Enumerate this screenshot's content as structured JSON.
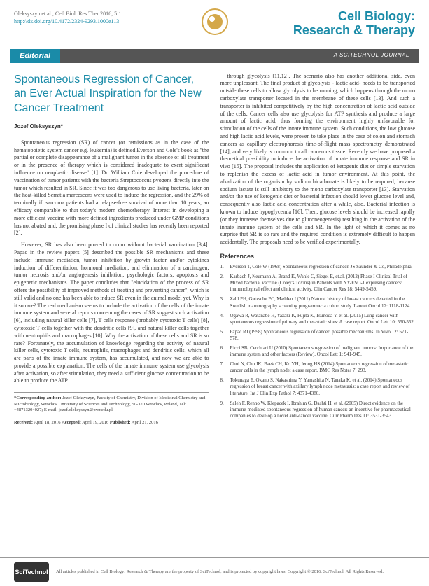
{
  "header": {
    "citation": "Oleksyszyn et al., Cell Biol: Res Ther 2016, 5:1",
    "doi": "http://dx.doi.org/10.4172/2324-9293.1000e113",
    "journal_l1": "Cell Biology:",
    "journal_l2": "Research & Therapy"
  },
  "bar": {
    "left": "Editorial",
    "right": "A SCITECHNOL JOURNAL"
  },
  "article": {
    "title": "Spontaneous Regression of Cancer, an Ever Actual Inspiration for the New Cancer Treatment",
    "author": "Jozef Oleksyszyn*"
  },
  "body": {
    "p1": "Spontaneous regression (SR) of cancer (or remissions as in the case of the hematopoietic system cancer e.g. leukemia) is defined Everson and Cole's book as \"the partial or complete disappearance of a malignant tumor in the absence of all treatment or in the presence of therapy which is considered inadequate to exert significant influence on neoplastic disease\" [1]. Dr. William Cole developed the procedure of vaccination of tumor patients with the bacteria Streptococcus pyogens directly into the tumor which resulted in SR. Since it was too dangerous to use living bacteria, later on the heat-killed Serratia marcescens were used to induce the regression, and the 29% of terminally ill sarcoma patients had a relapse-free survival of more than 10 years, an efficacy comparable to that today's modern chemotherapy. Interest in developing a more efficient vaccine with more defined ingredients produced under GMP conditions has not abated and, the promising phase I of clinical studies has recently been reported [2].",
    "p2": "However, SR has also been proved to occur without bacterial vaccination [3,4]. Papac in the review papers [5] described the possible SR mechanisms and these include: immune mediation, tumor inhibition by growth factor and/or cytokines induction of differentiation, hormonal mediation, and elimination of a carcinogen, tumor necrosis and/or angiogenesis inhibition, psychologic factors, apoptosis and epigenetic mechanisms. The paper concludes that \"elucidation of the process of SR offers the possibility of improved methods of treating and preventing cancer\", which is still valid and no one has been able to induce SR even in the animal model yet. Why is it so rare? The real mechanism seems to include the activation of the cells of the innate immune system and several reports concerning the cases of SR suggest such activation [6], including natural killer cells [7], T cells response (probably cytotoxic T cells) [8], cytotoxic T cells together with the dendritic cells [9], and natural killer cells together with neutrophils and macrophages [10]. Why the activation of these cells and SR is so rare? Fortunately, the accumulation of knowledge regarding the activity of natural killer cells, cytotoxic T cells, neutrophils, macrophages and dendritic cells, which all are parts of the innate immune system, has accumulated, and now we are able to provide a possible explanation. The cells of the innate immune system use glycolysis after activation, so after stimulation, they need a sufficient glucose concentration to be able to produce the ATP",
    "p3": "through glycolysis [11,12]. The scenario also has another additional side, even more unpleasant. The final product of glycolysis - lactic acid- needs to be transported outside these cells to allow glycolysis to be running, which happens through the mono carboxylate transporter located in the membrane of these cells [13]. And such a transporter is inhibited competitively by the high concentration of lactic acid outside of the cells. Cancer cells also use glycolysis for ATP synthesis and produce a large amount of lactic acid, thus forming the environment highly unfavorable for stimulation of the cells of the innate immune system. Such conditions, the low glucose and high lactic acid levels, were proven to take place in the case of colon and stomach cancers as capillary electrophoresis time-of-flight mass spectrometry demonstrated [14], and very likely is common to all cancerous tissue. Recently we have proposed a theoretical possibility to induce the activation of innate immune response and SR in vivo [15]. The proposal includes the application of ketogenic diet or simple starvation to replenish the excess of lactic acid in tumor environment. At this point, the alkalization of the organism by sodium bicarbonate is likely to be required, because sodium lactate is still inhibitory to the mono carboxylate transporter [13]. Starvation and/or the use of ketogenic diet or bacterial infection should lower glucose level and, consequently also lactic acid concentration after a while, also. Bacterial infection is known to induce hypoglycemia [16]. Then, glucose levels should be increased rapidly (or they increase themselves due to gluconeogenesis) resulting in the activation of the innate immune system of the cells and SR. In the light of which it comes as no surprise that SR is so rare and the required condition is extremely difficult to happen accidentally. The proposals need to be verified experimentally."
  },
  "refs_head": "References",
  "refs": [
    "Everson T, Cole W (1968) Spontaneous regression of cancer. JS Saunder & Co, Philadelphia.",
    "Karbach J, Neumann A, Brand K, Wahle C, Siegel E, et.al. (2012) Phase I Clinical Trial of Mixed bacterial vaccine (Coley's Toxins) in Patients with NY-ESO-1 expresing cancers: immunological effect and clinical activity. Clin Cancer Res 18: 5449-5459.",
    "Zahl PH, Gøtzsche PC, Mæhlen J (2011) Natural history of breast cancers detected in the Swedish mammography screening programme: a cohort study. Lancet Oncol 12: 1118-1124.",
    "Ogawa R, Watanabe H, Yazaki K, Fujita K, Tsunoda Y, et al. (2015) Lung cancer with spontaneous regression of primary and metastatic sites: A case report. Oncol Lett 10: 550-552.",
    "Papac RJ (1998) Spontaneous regression of cancer: possible mechanisms. In Vivo 12: 571-578.",
    "Ricci SB, Cerchiari U (2010) Spontaneous regression of malignant tumors: Importance of the immune system and other factors (Review). Oncol Lett 1: 941-945.",
    "Choi N, Cho JK, Baek CH, Ko YH, Jeong HS (2014) Spontaneous regression of metastatic cancer cells in the lymph node: a case report. BMC Res Notes 7: 293.",
    "Tokunaga E, Okano S, Nakashima Y, Yamashita N, Tanaka K, et al. (2014) Spontaneous regression of breast cancer with axillary lymph node metastasis: a case report and review of literature. Int J Clin Exp Pathol 7: 4371-4380.",
    "Saleh F, Renno W, Klepacek I, Ibrahim G, Dashti H, et al. (2005) Direct evidence on the immune-mediated spontaneous regression of human cancer: an incentive for pharmaceutical companies to develop a novel anti-cancer vaccine. Curr Pharm Des 11: 3531-3543."
  ],
  "corr": {
    "label": "*Corresponding author:",
    "text": " Jozef Oleksyszyn, Faculty of Chemistry, Division of Medicinal Chemistry and Microbiology, Wroclaw University of Sciences and Technology, 50-370 Wroclaw, Poland, Tel: +48713204027; E-mail: jozef.oleksyszyn@pwr.edu.pl"
  },
  "dates": {
    "r": "Received:",
    "rd": " April 18, 2016 ",
    "a": "Accepted:",
    "ad": " April 19, 2016 ",
    "p": "Published:",
    "pd": " April 21, 2016"
  },
  "footer": {
    "logo": "SciTechnol",
    "text": "All articles published in Cell Biology: Research & Therapy are the property of SciTechnol, and is protected by copyright laws. Copyright © 2016, SciTechnol, All Rights Reserved."
  }
}
